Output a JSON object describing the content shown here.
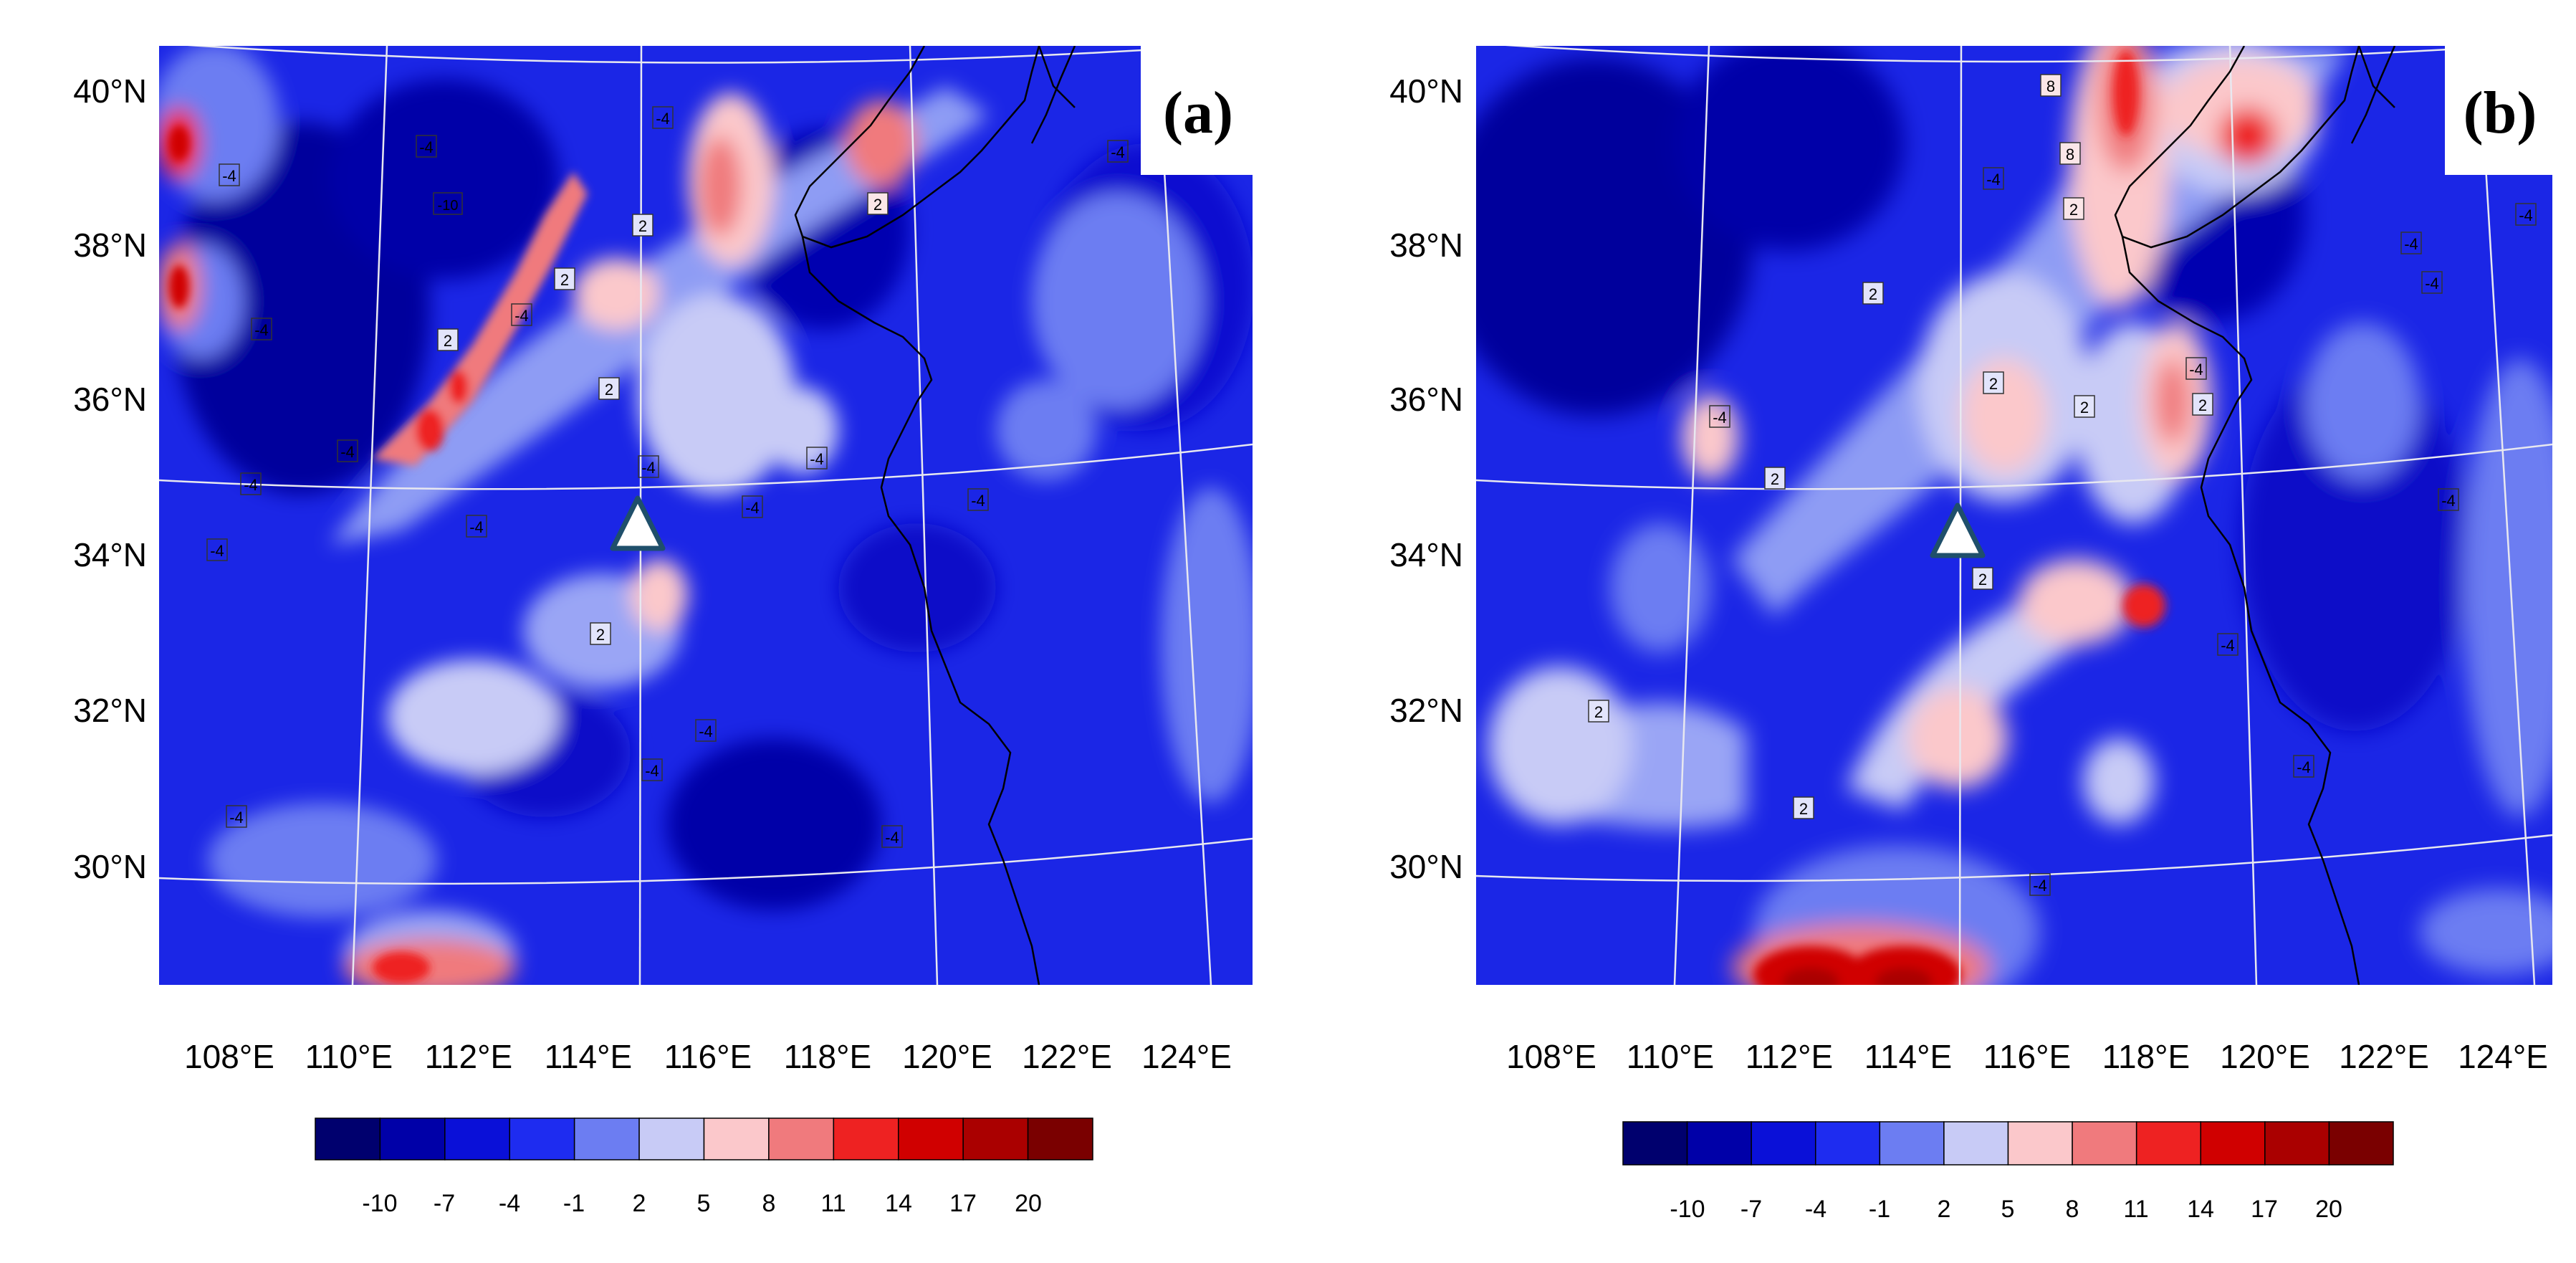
{
  "panels": [
    {
      "id": "a",
      "label": "(a)",
      "lat_labels": [
        "40°N",
        "38°N",
        "36°N",
        "34°N",
        "32°N",
        "30°N"
      ],
      "lon_labels": [
        "108°E",
        "110°E",
        "112°E",
        "114°E",
        "116°E",
        "118°E",
        "120°E",
        "122°E",
        "124°E"
      ],
      "contour_labels": [
        "-4",
        "-4",
        "-4",
        "-4",
        "-4",
        "-4",
        "-4",
        "-4",
        "-4",
        "-4",
        "-4",
        "-4",
        "-4",
        "-4",
        "-4",
        "-4",
        "-4",
        "-4",
        "2",
        "2",
        "2",
        "2",
        "2",
        "2",
        "-10"
      ],
      "colorbar_labels": [
        "-10",
        "-7",
        "-4",
        "-1",
        "2",
        "5",
        "8",
        "11",
        "14",
        "17",
        "20"
      ]
    },
    {
      "id": "b",
      "label": "(b)",
      "lat_labels": [
        "40°N",
        "38°N",
        "36°N",
        "34°N",
        "32°N",
        "30°N"
      ],
      "lon_labels": [
        "108°E",
        "110°E",
        "112°E",
        "114°E",
        "116°E",
        "118°E",
        "120°E",
        "122°E",
        "124°E"
      ],
      "contour_labels": [
        "8",
        "8",
        "2",
        "2",
        "2",
        "2",
        "2",
        "2",
        "2",
        "2",
        "2",
        "-4",
        "-4",
        "-4",
        "-4",
        "-4",
        "-4",
        "-4",
        "-4",
        "-4",
        "-4"
      ],
      "colorbar_labels": [
        "-10",
        "-7",
        "-4",
        "-1",
        "2",
        "5",
        "8",
        "11",
        "14",
        "17",
        "20"
      ]
    }
  ],
  "colorbar_colors": [
    "#00006e",
    "#0000a8",
    "#0a10d8",
    "#1e2cf0",
    "#6c7df2",
    "#c8cbf6",
    "#fbc8cb",
    "#f07a7d",
    "#ee2222",
    "#d00000",
    "#aa0000",
    "#7a0000"
  ],
  "station_marker": "white-triangle",
  "map_background": "#1b26e6"
}
